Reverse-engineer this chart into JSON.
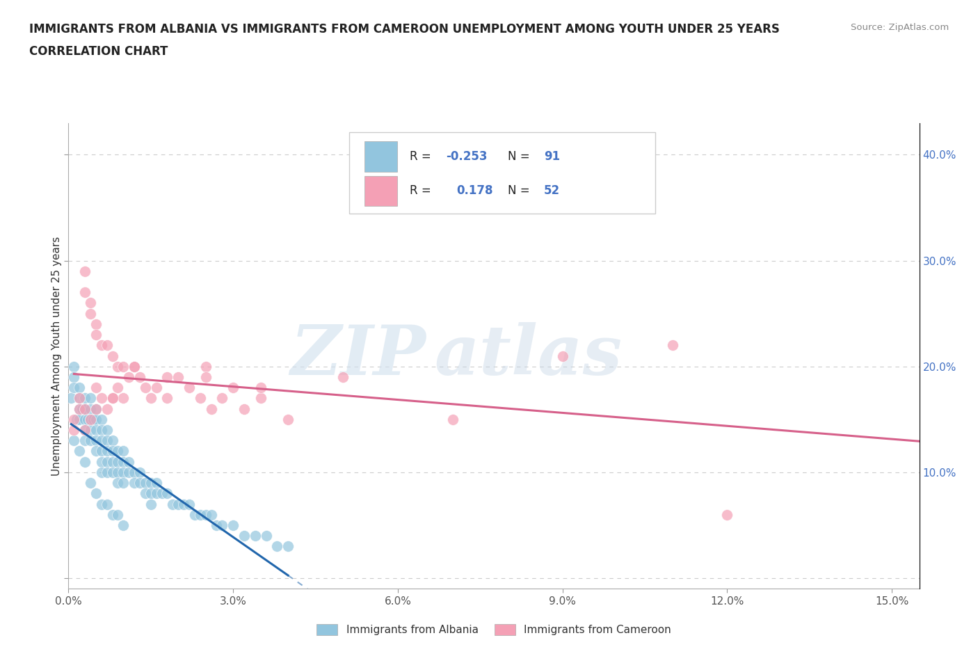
{
  "title_line1": "IMMIGRANTS FROM ALBANIA VS IMMIGRANTS FROM CAMEROON UNEMPLOYMENT AMONG YOUTH UNDER 25 YEARS",
  "title_line2": "CORRELATION CHART",
  "source": "Source: ZipAtlas.com",
  "ylabel": "Unemployment Among Youth under 25 years",
  "legend_label1": "Immigrants from Albania",
  "legend_label2": "Immigrants from Cameroon",
  "R1": -0.253,
  "N1": 91,
  "R2": 0.178,
  "N2": 52,
  "color1": "#92c5de",
  "color2": "#f4a0b5",
  "line_color1": "#2166ac",
  "line_color2": "#d6608a",
  "watermark_zip": "ZIP",
  "watermark_atlas": "atlas",
  "xlim": [
    0.0,
    0.155
  ],
  "ylim": [
    -0.01,
    0.43
  ],
  "xtick_vals": [
    0.0,
    0.03,
    0.06,
    0.09,
    0.12,
    0.15
  ],
  "xtick_labels": [
    "0.0%",
    "3.0%",
    "6.0%",
    "9.0%",
    "12.0%",
    "15.0%"
  ],
  "ytick_vals": [
    0.0,
    0.1,
    0.2,
    0.3,
    0.4
  ],
  "ytick_labels": [
    "",
    "10.0%",
    "20.0%",
    "30.0%",
    "40.0%"
  ],
  "background_color": "#ffffff",
  "grid_color": "#cccccc",
  "albania_x": [
    0.0005,
    0.001,
    0.001,
    0.001,
    0.0015,
    0.002,
    0.002,
    0.002,
    0.002,
    0.0025,
    0.003,
    0.003,
    0.003,
    0.003,
    0.003,
    0.0035,
    0.004,
    0.004,
    0.004,
    0.004,
    0.004,
    0.0045,
    0.005,
    0.005,
    0.005,
    0.005,
    0.005,
    0.006,
    0.006,
    0.006,
    0.006,
    0.006,
    0.006,
    0.007,
    0.007,
    0.007,
    0.007,
    0.007,
    0.008,
    0.008,
    0.008,
    0.008,
    0.009,
    0.009,
    0.009,
    0.009,
    0.01,
    0.01,
    0.01,
    0.01,
    0.011,
    0.011,
    0.012,
    0.012,
    0.013,
    0.013,
    0.014,
    0.014,
    0.015,
    0.015,
    0.016,
    0.016,
    0.017,
    0.018,
    0.019,
    0.02,
    0.021,
    0.022,
    0.023,
    0.024,
    0.025,
    0.026,
    0.027,
    0.028,
    0.03,
    0.032,
    0.034,
    0.036,
    0.038,
    0.04,
    0.001,
    0.002,
    0.003,
    0.004,
    0.005,
    0.006,
    0.007,
    0.008,
    0.009,
    0.01,
    0.015
  ],
  "albania_y": [
    0.17,
    0.2,
    0.19,
    0.18,
    0.15,
    0.18,
    0.17,
    0.16,
    0.15,
    0.16,
    0.17,
    0.16,
    0.15,
    0.14,
    0.13,
    0.15,
    0.17,
    0.16,
    0.15,
    0.14,
    0.13,
    0.15,
    0.16,
    0.15,
    0.14,
    0.13,
    0.12,
    0.15,
    0.14,
    0.13,
    0.12,
    0.11,
    0.1,
    0.14,
    0.13,
    0.12,
    0.11,
    0.1,
    0.13,
    0.12,
    0.11,
    0.1,
    0.12,
    0.11,
    0.1,
    0.09,
    0.12,
    0.11,
    0.1,
    0.09,
    0.11,
    0.1,
    0.1,
    0.09,
    0.1,
    0.09,
    0.09,
    0.08,
    0.09,
    0.08,
    0.09,
    0.08,
    0.08,
    0.08,
    0.07,
    0.07,
    0.07,
    0.07,
    0.06,
    0.06,
    0.06,
    0.06,
    0.05,
    0.05,
    0.05,
    0.04,
    0.04,
    0.04,
    0.03,
    0.03,
    0.13,
    0.12,
    0.11,
    0.09,
    0.08,
    0.07,
    0.07,
    0.06,
    0.06,
    0.05,
    0.07
  ],
  "cameroon_x": [
    0.001,
    0.001,
    0.002,
    0.002,
    0.003,
    0.003,
    0.003,
    0.004,
    0.004,
    0.004,
    0.005,
    0.005,
    0.005,
    0.006,
    0.006,
    0.007,
    0.007,
    0.008,
    0.008,
    0.009,
    0.009,
    0.01,
    0.01,
    0.011,
    0.012,
    0.013,
    0.014,
    0.015,
    0.016,
    0.018,
    0.02,
    0.022,
    0.024,
    0.025,
    0.026,
    0.028,
    0.03,
    0.032,
    0.035,
    0.04,
    0.003,
    0.005,
    0.008,
    0.012,
    0.018,
    0.025,
    0.035,
    0.05,
    0.07,
    0.09,
    0.11,
    0.12
  ],
  "cameroon_y": [
    0.15,
    0.14,
    0.17,
    0.16,
    0.29,
    0.27,
    0.14,
    0.26,
    0.25,
    0.15,
    0.24,
    0.23,
    0.16,
    0.22,
    0.17,
    0.22,
    0.16,
    0.21,
    0.17,
    0.2,
    0.18,
    0.2,
    0.17,
    0.19,
    0.2,
    0.19,
    0.18,
    0.17,
    0.18,
    0.17,
    0.19,
    0.18,
    0.17,
    0.2,
    0.16,
    0.17,
    0.18,
    0.16,
    0.17,
    0.15,
    0.16,
    0.18,
    0.17,
    0.2,
    0.19,
    0.19,
    0.18,
    0.19,
    0.15,
    0.21,
    0.22,
    0.06
  ]
}
